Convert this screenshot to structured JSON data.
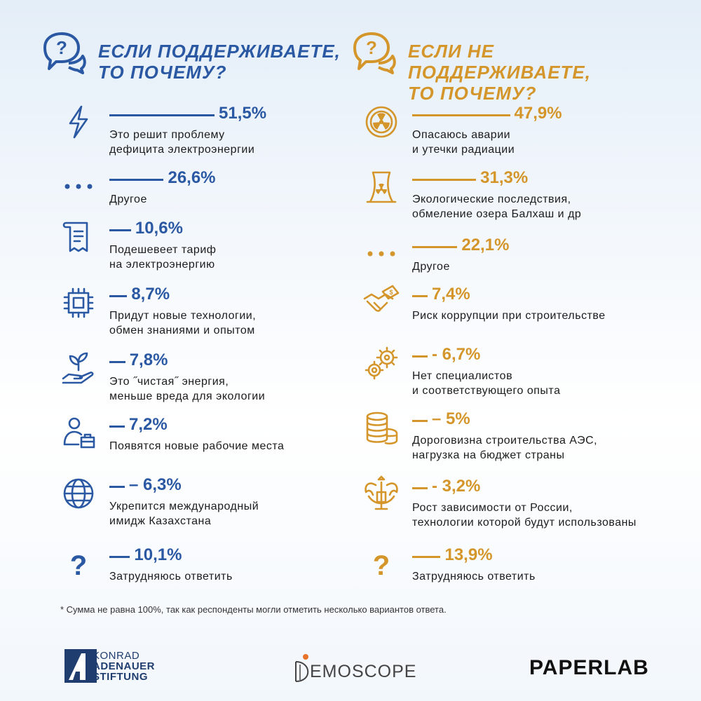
{
  "colors": {
    "blue": "#2a58a3",
    "gold": "#d4962b"
  },
  "left": {
    "title_line1": "ЕСЛИ ПОДДЕРЖИВАЕТЕ,",
    "title_line2": "ТО ПОЧЕМУ?",
    "icon": "chat-question-icon"
  },
  "right": {
    "title_line1": "ЕСЛИ НЕ ПОДДЕРЖИВАЕТЕ,",
    "title_line2": "ТО ПОЧЕМУ?",
    "icon": "chat-question-icon"
  },
  "chart_data": [
    {
      "type": "bar",
      "series": [
        {
          "values": [
            51.5,
            26.6,
            10.6,
            8.7,
            7.8,
            7.2,
            6.3,
            10.1
          ]
        }
      ],
      "categories": [
        "Это решит проблему\nдефицита электроэнергии",
        "Другое",
        "Подешевеет тариф\nна электроэнергию",
        "Придут новые технологии,\nобмен знаниями и опытом",
        "Это ˝чистая˝ энергия,\nменьше вреда для экологии",
        "Появятся новые рабочие места",
        "Укрепится международный\nимидж Казахстана",
        "Затрудняюсь ответить"
      ],
      "value_labels": [
        "51,5%",
        "26,6%",
        "10,6%",
        "8,7%",
        "7,8%",
        "7,2%",
        "6,3%",
        "10,1%"
      ],
      "prefixes": [
        "",
        "",
        "",
        "",
        "",
        "",
        "– ",
        ""
      ],
      "icons": [
        "lightning-icon",
        "dots-icon",
        "receipt-icon",
        "chip-icon",
        "plant-hand-icon",
        "worker-icon",
        "globe-icon",
        "question-icon"
      ]
    },
    {
      "type": "bar",
      "series": [
        {
          "values": [
            47.9,
            31.3,
            22.1,
            7.4,
            6.7,
            5,
            3.2,
            13.9
          ]
        }
      ],
      "categories": [
        "Опасаюсь аварии\nи утечки радиации",
        "Экологические последствия,\nобмеление озера Балхаш и др",
        "Другое",
        "Риск коррупции при строительстве",
        "Нет специалистов\nи соответствующего опыта",
        "Дороговизна строительства АЭС,\nнагрузка на бюджет страны",
        "Рост зависимости от России,\nтехнологии которой будут использованы",
        "Затрудняюсь ответить"
      ],
      "value_labels": [
        "47,9%",
        "31,3%",
        "22,1%",
        "7,4%",
        "6,7%",
        "5%",
        "3,2%",
        "13,9%"
      ],
      "prefixes": [
        "",
        "",
        "",
        "",
        "- ",
        "– ",
        "- ",
        ""
      ],
      "icons": [
        "radiation-icon",
        "nuclear-plant-icon",
        "dots-icon",
        "handshake-money-icon",
        "gears-icon",
        "coins-icon",
        "coat-of-arms-icon",
        "question-icon"
      ]
    }
  ],
  "footnote": "* Сумма не равна 100%, так как респонденты могли отметить несколько вариантов ответа.",
  "logos": {
    "kas": [
      "KONRAD",
      "ADENAUER",
      "STIFTUNG"
    ],
    "demoscope": "EMOSCOPE",
    "paperlab": "PAPERLAB"
  }
}
